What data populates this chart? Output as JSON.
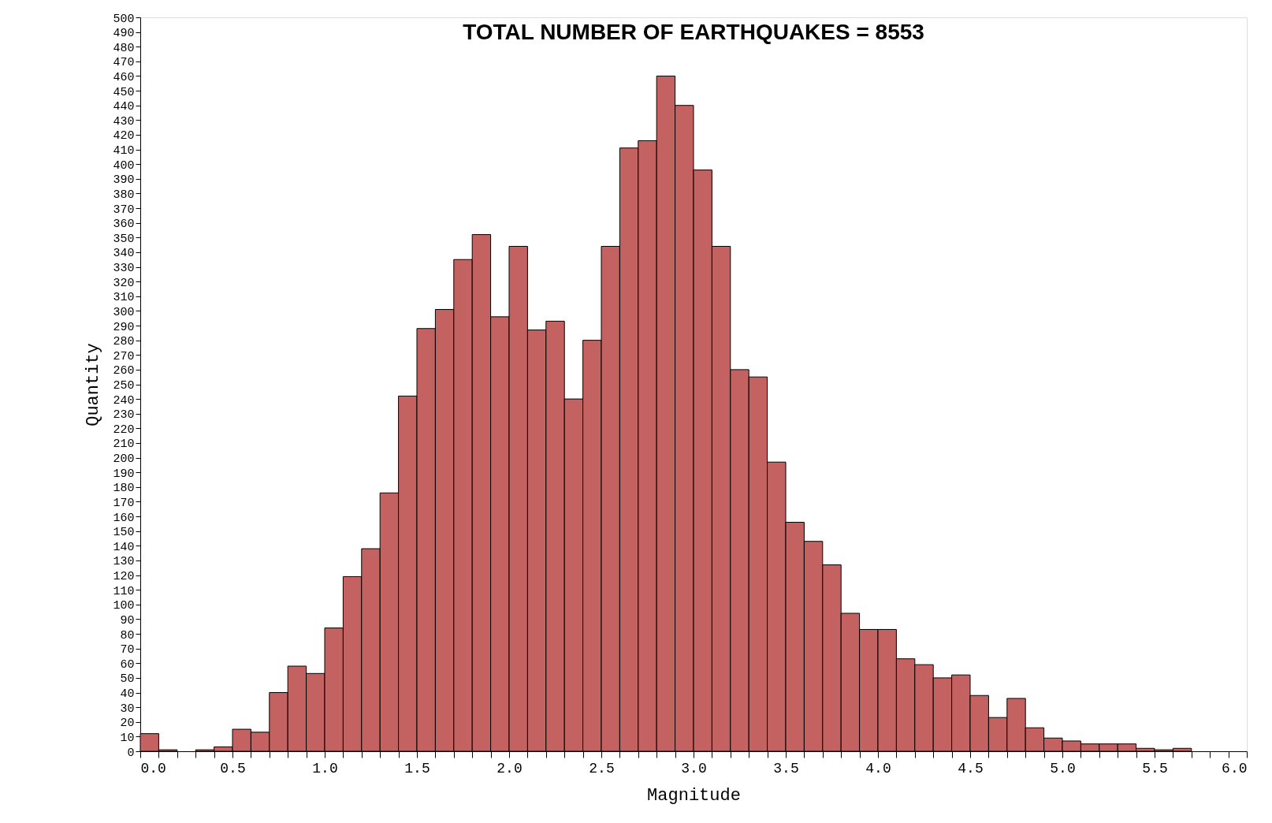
{
  "chart_data": {
    "type": "histogram",
    "title": "TOTAL NUMBER OF EARTHQUAKES = 8553",
    "xlabel": "Magnitude",
    "ylabel": "Quantity",
    "bins": [
      0.0,
      0.1,
      0.2,
      0.3,
      0.4,
      0.5,
      0.6,
      0.7,
      0.8,
      0.9,
      1.0,
      1.1,
      1.2,
      1.3,
      1.4,
      1.5,
      1.6,
      1.7,
      1.8,
      1.9,
      2.0,
      2.1,
      2.2,
      2.3,
      2.4,
      2.5,
      2.6,
      2.7,
      2.8,
      2.9,
      3.0,
      3.1,
      3.2,
      3.3,
      3.4,
      3.5,
      3.6,
      3.7,
      3.8,
      3.9,
      4.0,
      4.1,
      4.2,
      4.3,
      4.4,
      4.5,
      4.6,
      4.7,
      4.8,
      4.9,
      5.0,
      5.1,
      5.2,
      5.3,
      5.4,
      5.5,
      5.6,
      5.7,
      5.8,
      5.9,
      6.0
    ],
    "values": [
      12,
      1,
      0,
      1,
      3,
      15,
      13,
      40,
      58,
      53,
      84,
      119,
      138,
      176,
      242,
      288,
      301,
      335,
      352,
      296,
      344,
      287,
      293,
      240,
      280,
      344,
      411,
      416,
      460,
      440,
      396,
      344,
      260,
      255,
      197,
      156,
      143,
      127,
      94,
      83,
      83,
      63,
      59,
      50,
      52,
      38,
      23,
      36,
      16,
      9,
      7,
      5,
      5,
      5,
      2,
      1,
      2,
      0,
      0,
      0
    ],
    "color": "#c46262",
    "xlim": [
      0,
      6
    ],
    "ylim": [
      0,
      500
    ],
    "xticks": [
      {
        "value": 0,
        "label": "0.0"
      },
      {
        "value": 0.1,
        "label": null
      },
      {
        "value": 0.2,
        "label": null
      },
      {
        "value": 0.3,
        "label": null
      },
      {
        "value": 0.4,
        "label": null
      },
      {
        "value": 0.5,
        "label": "0.5"
      },
      {
        "value": 0.6,
        "label": null
      },
      {
        "value": 0.7,
        "label": null
      },
      {
        "value": 0.8,
        "label": null
      },
      {
        "value": 0.9,
        "label": null
      },
      {
        "value": 1,
        "label": "1.0"
      },
      {
        "value": 1.1,
        "label": null
      },
      {
        "value": 1.2,
        "label": null
      },
      {
        "value": 1.3,
        "label": null
      },
      {
        "value": 1.4,
        "label": null
      },
      {
        "value": 1.5,
        "label": "1.5"
      },
      {
        "value": 1.6,
        "label": null
      },
      {
        "value": 1.7,
        "label": null
      },
      {
        "value": 1.8,
        "label": null
      },
      {
        "value": 1.9,
        "label": null
      },
      {
        "value": 2,
        "label": "2.0"
      },
      {
        "value": 2.1,
        "label": null
      },
      {
        "value": 2.2,
        "label": null
      },
      {
        "value": 2.3,
        "label": null
      },
      {
        "value": 2.4,
        "label": null
      },
      {
        "value": 2.5,
        "label": "2.5"
      },
      {
        "value": 2.6,
        "label": null
      },
      {
        "value": 2.7,
        "label": null
      },
      {
        "value": 2.8,
        "label": null
      },
      {
        "value": 2.9,
        "label": null
      },
      {
        "value": 3,
        "label": "3.0"
      },
      {
        "value": 3.1,
        "label": null
      },
      {
        "value": 3.2,
        "label": null
      },
      {
        "value": 3.3,
        "label": null
      },
      {
        "value": 3.4,
        "label": null
      },
      {
        "value": 3.5,
        "label": "3.5"
      },
      {
        "value": 3.6,
        "label": null
      },
      {
        "value": 3.7,
        "label": null
      },
      {
        "value": 3.8,
        "label": null
      },
      {
        "value": 3.9,
        "label": null
      },
      {
        "value": 4,
        "label": "4.0"
      },
      {
        "value": 4.1,
        "label": null
      },
      {
        "value": 4.2,
        "label": null
      },
      {
        "value": 4.3,
        "label": null
      },
      {
        "value": 4.4,
        "label": null
      },
      {
        "value": 4.5,
        "label": "4.5"
      },
      {
        "value": 4.6,
        "label": null
      },
      {
        "value": 4.7,
        "label": null
      },
      {
        "value": 4.8,
        "label": null
      },
      {
        "value": 4.9,
        "label": null
      },
      {
        "value": 5,
        "label": "5.0"
      },
      {
        "value": 5.1,
        "label": null
      },
      {
        "value": 5.2,
        "label": null
      },
      {
        "value": 5.3,
        "label": null
      },
      {
        "value": 5.4,
        "label": null
      },
      {
        "value": 5.5,
        "label": "5.5"
      },
      {
        "value": 5.6,
        "label": null
      },
      {
        "value": 5.7,
        "label": null
      },
      {
        "value": 5.8,
        "label": null
      },
      {
        "value": 5.9,
        "label": null
      },
      {
        "value": 6,
        "label": "6.0"
      }
    ],
    "yticks": [
      0,
      10,
      20,
      30,
      40,
      50,
      60,
      70,
      80,
      90,
      100,
      110,
      120,
      130,
      140,
      150,
      160,
      170,
      180,
      190,
      200,
      210,
      220,
      230,
      240,
      250,
      260,
      270,
      280,
      290,
      300,
      310,
      320,
      330,
      340,
      350,
      360,
      370,
      380,
      390,
      400,
      410,
      420,
      430,
      440,
      450,
      460,
      470,
      480,
      490,
      500
    ],
    "grid": false
  }
}
